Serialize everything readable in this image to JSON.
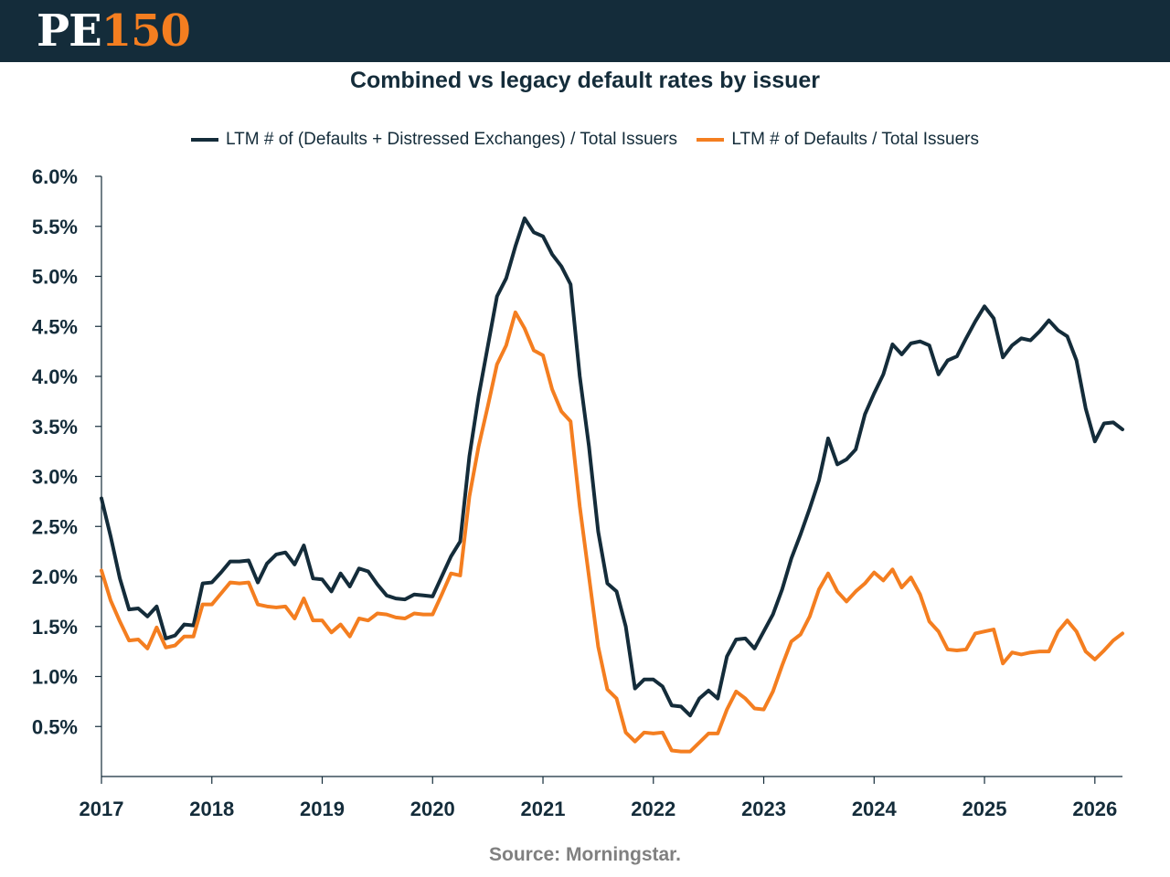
{
  "header": {
    "logo_pe": "PE",
    "logo_num": "150",
    "bar_color": "#142c3a",
    "accent_color": "#f47e20"
  },
  "chart_data": {
    "type": "line",
    "title": "Combined vs legacy default rates by issuer",
    "xlabel": "",
    "ylabel": "",
    "ylim": [
      0,
      6
    ],
    "yticks": [
      {
        "v": 0.5,
        "label": "0.5%"
      },
      {
        "v": 1.0,
        "label": "1.0%"
      },
      {
        "v": 1.5,
        "label": "1.5%"
      },
      {
        "v": 2.0,
        "label": "2.0%"
      },
      {
        "v": 2.5,
        "label": "2.5%"
      },
      {
        "v": 3.0,
        "label": "3.0%"
      },
      {
        "v": 3.5,
        "label": "3.5%"
      },
      {
        "v": 4.0,
        "label": "4.0%"
      },
      {
        "v": 4.5,
        "label": "4.5%"
      },
      {
        "v": 5.0,
        "label": "5.0%"
      },
      {
        "v": 5.5,
        "label": "5.5%"
      },
      {
        "v": 6.0,
        "label": "6.0%"
      }
    ],
    "xticks": [
      "2017",
      "2018",
      "2019",
      "2020",
      "2021",
      "2022",
      "2023",
      "2024",
      "2025",
      "2026"
    ],
    "xlim": [
      "2017-01",
      "2026-04"
    ],
    "grid": false,
    "legend_position": "top",
    "series": [
      {
        "name": "LTM # of (Defaults + Distressed Exchanges) / Total Issuers",
        "color": "#142c3a",
        "points": [
          [
            "2017-01",
            2.78
          ],
          [
            "2017-02",
            2.4
          ],
          [
            "2017-03",
            1.98
          ],
          [
            "2017-04",
            1.67
          ],
          [
            "2017-05",
            1.68
          ],
          [
            "2017-06",
            1.6
          ],
          [
            "2017-07",
            1.7
          ],
          [
            "2017-08",
            1.38
          ],
          [
            "2017-09",
            1.41
          ],
          [
            "2017-10",
            1.52
          ],
          [
            "2017-11",
            1.51
          ],
          [
            "2017-12",
            1.93
          ],
          [
            "2018-01",
            1.94
          ],
          [
            "2018-02",
            2.04
          ],
          [
            "2018-03",
            2.15
          ],
          [
            "2018-04",
            2.15
          ],
          [
            "2018-05",
            2.16
          ],
          [
            "2018-06",
            1.94
          ],
          [
            "2018-07",
            2.13
          ],
          [
            "2018-08",
            2.22
          ],
          [
            "2018-09",
            2.24
          ],
          [
            "2018-10",
            2.12
          ],
          [
            "2018-11",
            2.31
          ],
          [
            "2018-12",
            1.98
          ],
          [
            "2019-01",
            1.97
          ],
          [
            "2019-02",
            1.85
          ],
          [
            "2019-03",
            2.03
          ],
          [
            "2019-04",
            1.9
          ],
          [
            "2019-05",
            2.08
          ],
          [
            "2019-06",
            2.05
          ],
          [
            "2019-07",
            1.92
          ],
          [
            "2019-08",
            1.81
          ],
          [
            "2019-09",
            1.78
          ],
          [
            "2019-10",
            1.77
          ],
          [
            "2019-11",
            1.82
          ],
          [
            "2019-12",
            1.81
          ],
          [
            "2020-01",
            1.8
          ],
          [
            "2020-02",
            2.0
          ],
          [
            "2020-03",
            2.2
          ],
          [
            "2020-04",
            2.35
          ],
          [
            "2020-05",
            3.2
          ],
          [
            "2020-06",
            3.8
          ],
          [
            "2020-07",
            4.3
          ],
          [
            "2020-08",
            4.8
          ],
          [
            "2020-09",
            4.98
          ],
          [
            "2020-10",
            5.3
          ],
          [
            "2020-11",
            5.58
          ],
          [
            "2020-12",
            5.44
          ],
          [
            "2021-01",
            5.4
          ],
          [
            "2021-02",
            5.22
          ],
          [
            "2021-03",
            5.1
          ],
          [
            "2021-04",
            4.92
          ],
          [
            "2021-05",
            4.0
          ],
          [
            "2021-06",
            3.3
          ],
          [
            "2021-07",
            2.45
          ],
          [
            "2021-08",
            1.93
          ],
          [
            "2021-09",
            1.85
          ],
          [
            "2021-10",
            1.5
          ],
          [
            "2021-11",
            0.88
          ],
          [
            "2021-12",
            0.97
          ],
          [
            "2022-01",
            0.97
          ],
          [
            "2022-02",
            0.9
          ],
          [
            "2022-03",
            0.71
          ],
          [
            "2022-04",
            0.7
          ],
          [
            "2022-05",
            0.61
          ],
          [
            "2022-06",
            0.78
          ],
          [
            "2022-07",
            0.86
          ],
          [
            "2022-08",
            0.78
          ],
          [
            "2022-09",
            1.2
          ],
          [
            "2022-10",
            1.37
          ],
          [
            "2022-11",
            1.38
          ],
          [
            "2022-12",
            1.28
          ],
          [
            "2023-01",
            1.45
          ],
          [
            "2023-02",
            1.62
          ],
          [
            "2023-03",
            1.87
          ],
          [
            "2023-04",
            2.18
          ],
          [
            "2023-05",
            2.42
          ],
          [
            "2023-06",
            2.68
          ],
          [
            "2023-07",
            2.96
          ],
          [
            "2023-08",
            3.38
          ],
          [
            "2023-09",
            3.12
          ],
          [
            "2023-10",
            3.17
          ],
          [
            "2023-11",
            3.27
          ],
          [
            "2023-12",
            3.62
          ],
          [
            "2024-01",
            3.83
          ],
          [
            "2024-02",
            4.02
          ],
          [
            "2024-03",
            4.32
          ],
          [
            "2024-04",
            4.22
          ],
          [
            "2024-05",
            4.33
          ],
          [
            "2024-06",
            4.35
          ],
          [
            "2024-07",
            4.31
          ],
          [
            "2024-08",
            4.02
          ],
          [
            "2024-09",
            4.16
          ],
          [
            "2024-10",
            4.2
          ],
          [
            "2024-11",
            4.38
          ],
          [
            "2024-12",
            4.55
          ],
          [
            "2025-01",
            4.7
          ],
          [
            "2025-02",
            4.58
          ],
          [
            "2025-03",
            4.19
          ],
          [
            "2025-04",
            4.31
          ],
          [
            "2025-05",
            4.38
          ],
          [
            "2025-06",
            4.36
          ],
          [
            "2025-07",
            4.45
          ],
          [
            "2025-08",
            4.56
          ],
          [
            "2025-09",
            4.46
          ],
          [
            "2025-10",
            4.4
          ],
          [
            "2025-11",
            4.16
          ],
          [
            "2025-12",
            3.68
          ],
          [
            "2026-01",
            3.35
          ],
          [
            "2026-02",
            3.53
          ],
          [
            "2026-03",
            3.54
          ],
          [
            "2026-04",
            3.47
          ]
        ]
      },
      {
        "name": "LTM # of Defaults / Total Issuers",
        "color": "#f47e20",
        "points": [
          [
            "2017-01",
            2.06
          ],
          [
            "2017-02",
            1.76
          ],
          [
            "2017-03",
            1.55
          ],
          [
            "2017-04",
            1.36
          ],
          [
            "2017-05",
            1.37
          ],
          [
            "2017-06",
            1.28
          ],
          [
            "2017-07",
            1.49
          ],
          [
            "2017-08",
            1.29
          ],
          [
            "2017-09",
            1.31
          ],
          [
            "2017-10",
            1.4
          ],
          [
            "2017-11",
            1.4
          ],
          [
            "2017-12",
            1.72
          ],
          [
            "2018-01",
            1.72
          ],
          [
            "2018-02",
            1.83
          ],
          [
            "2018-03",
            1.94
          ],
          [
            "2018-04",
            1.93
          ],
          [
            "2018-05",
            1.94
          ],
          [
            "2018-06",
            1.72
          ],
          [
            "2018-07",
            1.7
          ],
          [
            "2018-08",
            1.69
          ],
          [
            "2018-09",
            1.7
          ],
          [
            "2018-10",
            1.58
          ],
          [
            "2018-11",
            1.78
          ],
          [
            "2018-12",
            1.56
          ],
          [
            "2019-01",
            1.56
          ],
          [
            "2019-02",
            1.44
          ],
          [
            "2019-03",
            1.52
          ],
          [
            "2019-04",
            1.4
          ],
          [
            "2019-05",
            1.58
          ],
          [
            "2019-06",
            1.56
          ],
          [
            "2019-07",
            1.63
          ],
          [
            "2019-08",
            1.62
          ],
          [
            "2019-09",
            1.59
          ],
          [
            "2019-10",
            1.58
          ],
          [
            "2019-11",
            1.63
          ],
          [
            "2019-12",
            1.62
          ],
          [
            "2020-01",
            1.62
          ],
          [
            "2020-02",
            1.82
          ],
          [
            "2020-03",
            2.03
          ],
          [
            "2020-04",
            2.01
          ],
          [
            "2020-05",
            2.8
          ],
          [
            "2020-06",
            3.3
          ],
          [
            "2020-07",
            3.7
          ],
          [
            "2020-08",
            4.12
          ],
          [
            "2020-09",
            4.31
          ],
          [
            "2020-10",
            4.64
          ],
          [
            "2020-11",
            4.48
          ],
          [
            "2020-12",
            4.26
          ],
          [
            "2021-01",
            4.21
          ],
          [
            "2021-02",
            3.87
          ],
          [
            "2021-03",
            3.65
          ],
          [
            "2021-04",
            3.55
          ],
          [
            "2021-05",
            2.7
          ],
          [
            "2021-06",
            2.0
          ],
          [
            "2021-07",
            1.3
          ],
          [
            "2021-08",
            0.87
          ],
          [
            "2021-09",
            0.78
          ],
          [
            "2021-10",
            0.44
          ],
          [
            "2021-11",
            0.35
          ],
          [
            "2021-12",
            0.44
          ],
          [
            "2022-01",
            0.43
          ],
          [
            "2022-02",
            0.44
          ],
          [
            "2022-03",
            0.26
          ],
          [
            "2022-04",
            0.25
          ],
          [
            "2022-05",
            0.25
          ],
          [
            "2022-06",
            0.34
          ],
          [
            "2022-07",
            0.43
          ],
          [
            "2022-08",
            0.43
          ],
          [
            "2022-09",
            0.67
          ],
          [
            "2022-10",
            0.85
          ],
          [
            "2022-11",
            0.78
          ],
          [
            "2022-12",
            0.68
          ],
          [
            "2023-01",
            0.67
          ],
          [
            "2023-02",
            0.85
          ],
          [
            "2023-03",
            1.11
          ],
          [
            "2023-04",
            1.35
          ],
          [
            "2023-05",
            1.42
          ],
          [
            "2023-06",
            1.6
          ],
          [
            "2023-07",
            1.87
          ],
          [
            "2023-08",
            2.03
          ],
          [
            "2023-09",
            1.85
          ],
          [
            "2023-10",
            1.75
          ],
          [
            "2023-11",
            1.85
          ],
          [
            "2023-12",
            1.93
          ],
          [
            "2024-01",
            2.04
          ],
          [
            "2024-02",
            1.96
          ],
          [
            "2024-03",
            2.07
          ],
          [
            "2024-04",
            1.89
          ],
          [
            "2024-05",
            1.99
          ],
          [
            "2024-06",
            1.82
          ],
          [
            "2024-07",
            1.55
          ],
          [
            "2024-08",
            1.45
          ],
          [
            "2024-09",
            1.27
          ],
          [
            "2024-10",
            1.26
          ],
          [
            "2024-11",
            1.27
          ],
          [
            "2024-12",
            1.43
          ],
          [
            "2025-01",
            1.45
          ],
          [
            "2025-02",
            1.47
          ],
          [
            "2025-03",
            1.13
          ],
          [
            "2025-04",
            1.24
          ],
          [
            "2025-05",
            1.22
          ],
          [
            "2025-06",
            1.24
          ],
          [
            "2025-07",
            1.25
          ],
          [
            "2025-08",
            1.25
          ],
          [
            "2025-09",
            1.45
          ],
          [
            "2025-10",
            1.56
          ],
          [
            "2025-11",
            1.45
          ],
          [
            "2025-12",
            1.25
          ],
          [
            "2026-01",
            1.17
          ],
          [
            "2026-02",
            1.26
          ],
          [
            "2026-03",
            1.36
          ],
          [
            "2026-04",
            1.43
          ]
        ]
      }
    ],
    "source": "Source: Morningstar."
  }
}
